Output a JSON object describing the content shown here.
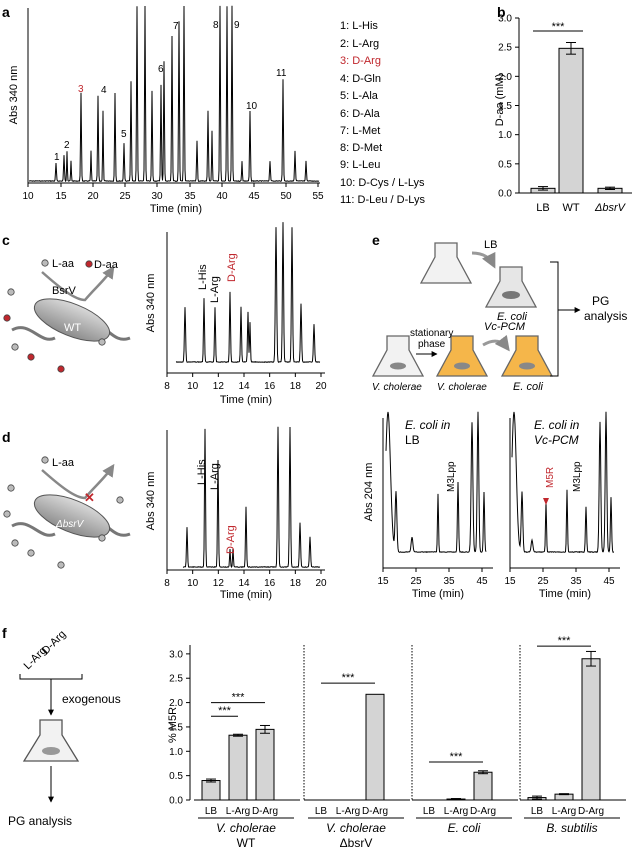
{
  "panels": {
    "a": "a",
    "b": "b",
    "c": "c",
    "d": "d",
    "e": "e",
    "f": "f"
  },
  "a": {
    "ylabel": "Abs 340 nm",
    "xlabel": "Time (min)",
    "xticks": [
      "10",
      "15",
      "20",
      "25",
      "30",
      "35",
      "40",
      "45",
      "50",
      "55"
    ],
    "peak_numbers": [
      "1",
      "2",
      "3",
      "4",
      "5",
      "6",
      "7",
      "8",
      "9",
      "10",
      "11"
    ],
    "legend": [
      "1: L-His",
      "2: L-Arg",
      "3: D-Arg",
      "4: D-Gln",
      "5: L-Ala",
      "6: D-Ala",
      "7: L-Met",
      "8: D-Met",
      "9: L-Leu",
      "10: D-Cys / L-Lys",
      "11: D-Leu / D-Lys"
    ],
    "highlight_color": "#c0272d"
  },
  "c": {
    "cartoon": {
      "l_aa": "L-aa",
      "d_aa": "D-aa",
      "enzyme": "BsrV",
      "cell": "WT"
    },
    "ylabel": "Abs 340 nm",
    "xlabel": "Time (min)",
    "xticks": [
      "8",
      "10",
      "12",
      "14",
      "16",
      "18",
      "20"
    ],
    "peaks": [
      "L-His",
      "L-Arg",
      "D-Arg"
    ]
  },
  "d": {
    "cartoon": {
      "l_aa": "L-aa",
      "cell": "ΔbsrV"
    },
    "ylabel": "Abs 340 nm",
    "xlabel": "Time (min)",
    "xticks": [
      "8",
      "10",
      "12",
      "14",
      "16",
      "18",
      "20"
    ],
    "peaks": [
      "L-His",
      "L-Arg",
      "D-Arg"
    ]
  },
  "e": {
    "scheme": {
      "lb": "LB",
      "ecoli1": "E. coli",
      "stationary": "stationary",
      "phase": "phase",
      "vc_pcm": "Vc-PCM",
      "vcholerae1": "V. cholerae",
      "vcholerae2": "V. cholerae",
      "ecoli2": "E. coli",
      "pg": "PG",
      "analysis": "analysis"
    },
    "ylabel": "Abs 204 nm",
    "xlabel": "Time (min)",
    "left_title_1": "E. coli in",
    "left_title_2": "LB",
    "right_title_1": "E. coli in",
    "right_title_2": "Vc-PCM",
    "m3lpp": "M3Lpp",
    "m5r": "M5R",
    "xticks": [
      "15",
      "25",
      "35",
      "45"
    ]
  },
  "f": {
    "scheme": {
      "larg": "L-Arg",
      "darg": "D-Arg",
      "exogenous": "exogenous",
      "pg": "PG analysis"
    },
    "ylabel": "% M5R",
    "yticks": [
      "0.0",
      "0.5",
      "1.0",
      "1.5",
      "2.0",
      "2.5",
      "3.0"
    ],
    "groups": [
      {
        "name1": "V. cholerae",
        "name2": "WT",
        "cats": [
          "LB",
          "L-Arg",
          "D-Arg"
        ],
        "values": [
          0.4,
          1.33,
          1.45
        ],
        "err": [
          0.03,
          0.02,
          0.08
        ],
        "sig": [
          {
            "from": 0,
            "to": 1,
            "label": "***"
          },
          {
            "from": 0,
            "to": 2,
            "label": "***"
          }
        ]
      },
      {
        "name1": "V. cholerae",
        "name2": "ΔbsrV",
        "cats": [
          "LB",
          "L-Arg",
          "D-Arg"
        ],
        "values": [
          0,
          0,
          2.17
        ],
        "err": [
          0,
          0,
          0
        ],
        "sig": [
          {
            "from": 0,
            "to": 2,
            "label": "***"
          }
        ]
      },
      {
        "name1": "E. coli",
        "name2": "",
        "cats": [
          "LB",
          "L-Arg",
          "D-Arg"
        ],
        "values": [
          0,
          0.02,
          0.57
        ],
        "err": [
          0,
          0.01,
          0.03
        ],
        "sig": [
          {
            "from": 0,
            "to": 2,
            "label": "***"
          }
        ]
      },
      {
        "name1": "B. subtilis",
        "name2": "",
        "cats": [
          "LB",
          "L-Arg",
          "D-Arg"
        ],
        "values": [
          0.05,
          0.12,
          2.9
        ],
        "err": [
          0.03,
          0.01,
          0.15
        ],
        "sig": [
          {
            "from": 0,
            "to": 2,
            "label": "***"
          }
        ]
      }
    ]
  },
  "chart_data": [
    {
      "type": "bar",
      "ylabel": "D-aa (mM)",
      "categories": [
        "LB",
        "WT",
        "ΔbsrV"
      ],
      "values": [
        0.08,
        2.48,
        0.08
      ],
      "err": [
        0.03,
        0.1,
        0.02
      ],
      "ylim": [
        0,
        3.0
      ],
      "yticks": [
        "0.0",
        "0.5",
        "1.0",
        "1.5",
        "2.0",
        "2.5",
        "3.0"
      ],
      "sig": "***"
    }
  ]
}
